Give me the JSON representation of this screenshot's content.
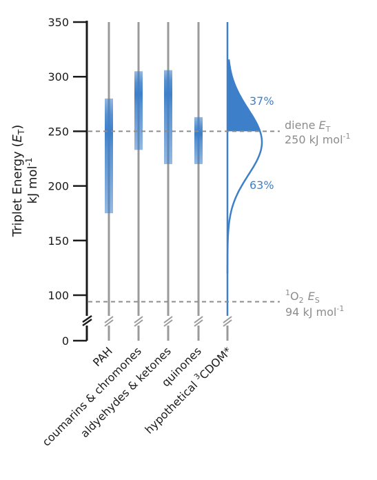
{
  "chart_data": {
    "type": "range",
    "yaxis": {
      "label_line1": "Triplet Energy (",
      "label_symbol": "E",
      "label_symbol_sub": "T",
      "label_line1_close": ")",
      "label_line2": "kJ mol",
      "label_line2_sup": "-1",
      "ticks": [
        0,
        100,
        150,
        200,
        250,
        300,
        350
      ],
      "ylim": [
        0,
        350
      ],
      "axis_break_between": [
        0,
        90
      ]
    },
    "categories": [
      {
        "label": "PAH",
        "low": 175,
        "high": 280,
        "center": 250
      },
      {
        "label": "coumarins & chromones",
        "low": 233,
        "high": 305,
        "center": 284
      },
      {
        "label": "aldyehydes & ketones",
        "low": 220,
        "high": 306,
        "center": 284
      },
      {
        "label": "quinones",
        "low": 220,
        "high": 263,
        "center": 248
      },
      {
        "label_prefix": "hypothetical ",
        "label_sup": "3",
        "label_main": "CDOM*",
        "distribution": {
          "type": "normal",
          "mean": 240,
          "sd": 30
        }
      }
    ],
    "reference_lines": [
      {
        "value": 250,
        "label_prefix": "diene ",
        "label_symbol": "E",
        "label_symbol_sub": "T",
        "label_line2": "250 kJ mol",
        "label_line2_sup": "-1"
      },
      {
        "value": 94,
        "label_sup": "1",
        "label_o": "O",
        "label_o_sub": "2",
        "label_symbol": "E",
        "label_symbol_sub": "S",
        "label_line2": "94 kJ mol",
        "label_line2_sup": "-1"
      }
    ],
    "annotations": [
      {
        "text": "37%",
        "region": "above 250"
      },
      {
        "text": "63%",
        "region": "below 250"
      }
    ],
    "colors": {
      "accent": "#3d7fc9",
      "axis": "#1a1a1a",
      "line": "#9a9a9a",
      "ref": "#8c8c8c"
    }
  }
}
